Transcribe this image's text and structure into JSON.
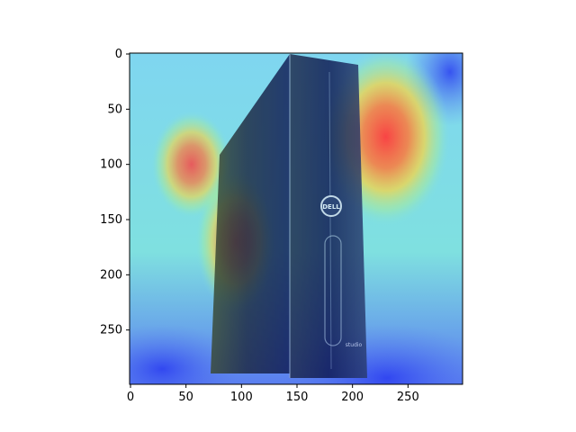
{
  "chart_data": {
    "type": "heatmap",
    "title": "",
    "xlabel": "",
    "ylabel": "",
    "image_size": [
      300,
      300
    ],
    "xlim": [
      0,
      300
    ],
    "ylim": [
      300,
      0
    ],
    "x_ticks": [
      0,
      50,
      100,
      150,
      200,
      250
    ],
    "y_ticks": [
      0,
      50,
      100,
      150,
      200,
      250
    ],
    "x_tick_labels": [
      "0",
      "50",
      "100",
      "150",
      "200",
      "250"
    ],
    "y_tick_labels": [
      "0",
      "50",
      "100",
      "150",
      "200",
      "250"
    ],
    "colormap": "jet",
    "overlay_subject": "Dell desktop tower computer",
    "hotspots": [
      {
        "x": 230,
        "y": 75,
        "intensity": 1.0
      },
      {
        "x": 55,
        "y": 100,
        "intensity": 0.85
      },
      {
        "x": 95,
        "y": 170,
        "intensity": 0.8
      }
    ],
    "grid": false,
    "legend": "none"
  },
  "branding": {
    "logo_text": "DELL",
    "model_text": "studio"
  },
  "colors": {
    "axis": "#000000",
    "case_dark": "#1a1f38",
    "bezel_blue": "#0b1f7a"
  }
}
